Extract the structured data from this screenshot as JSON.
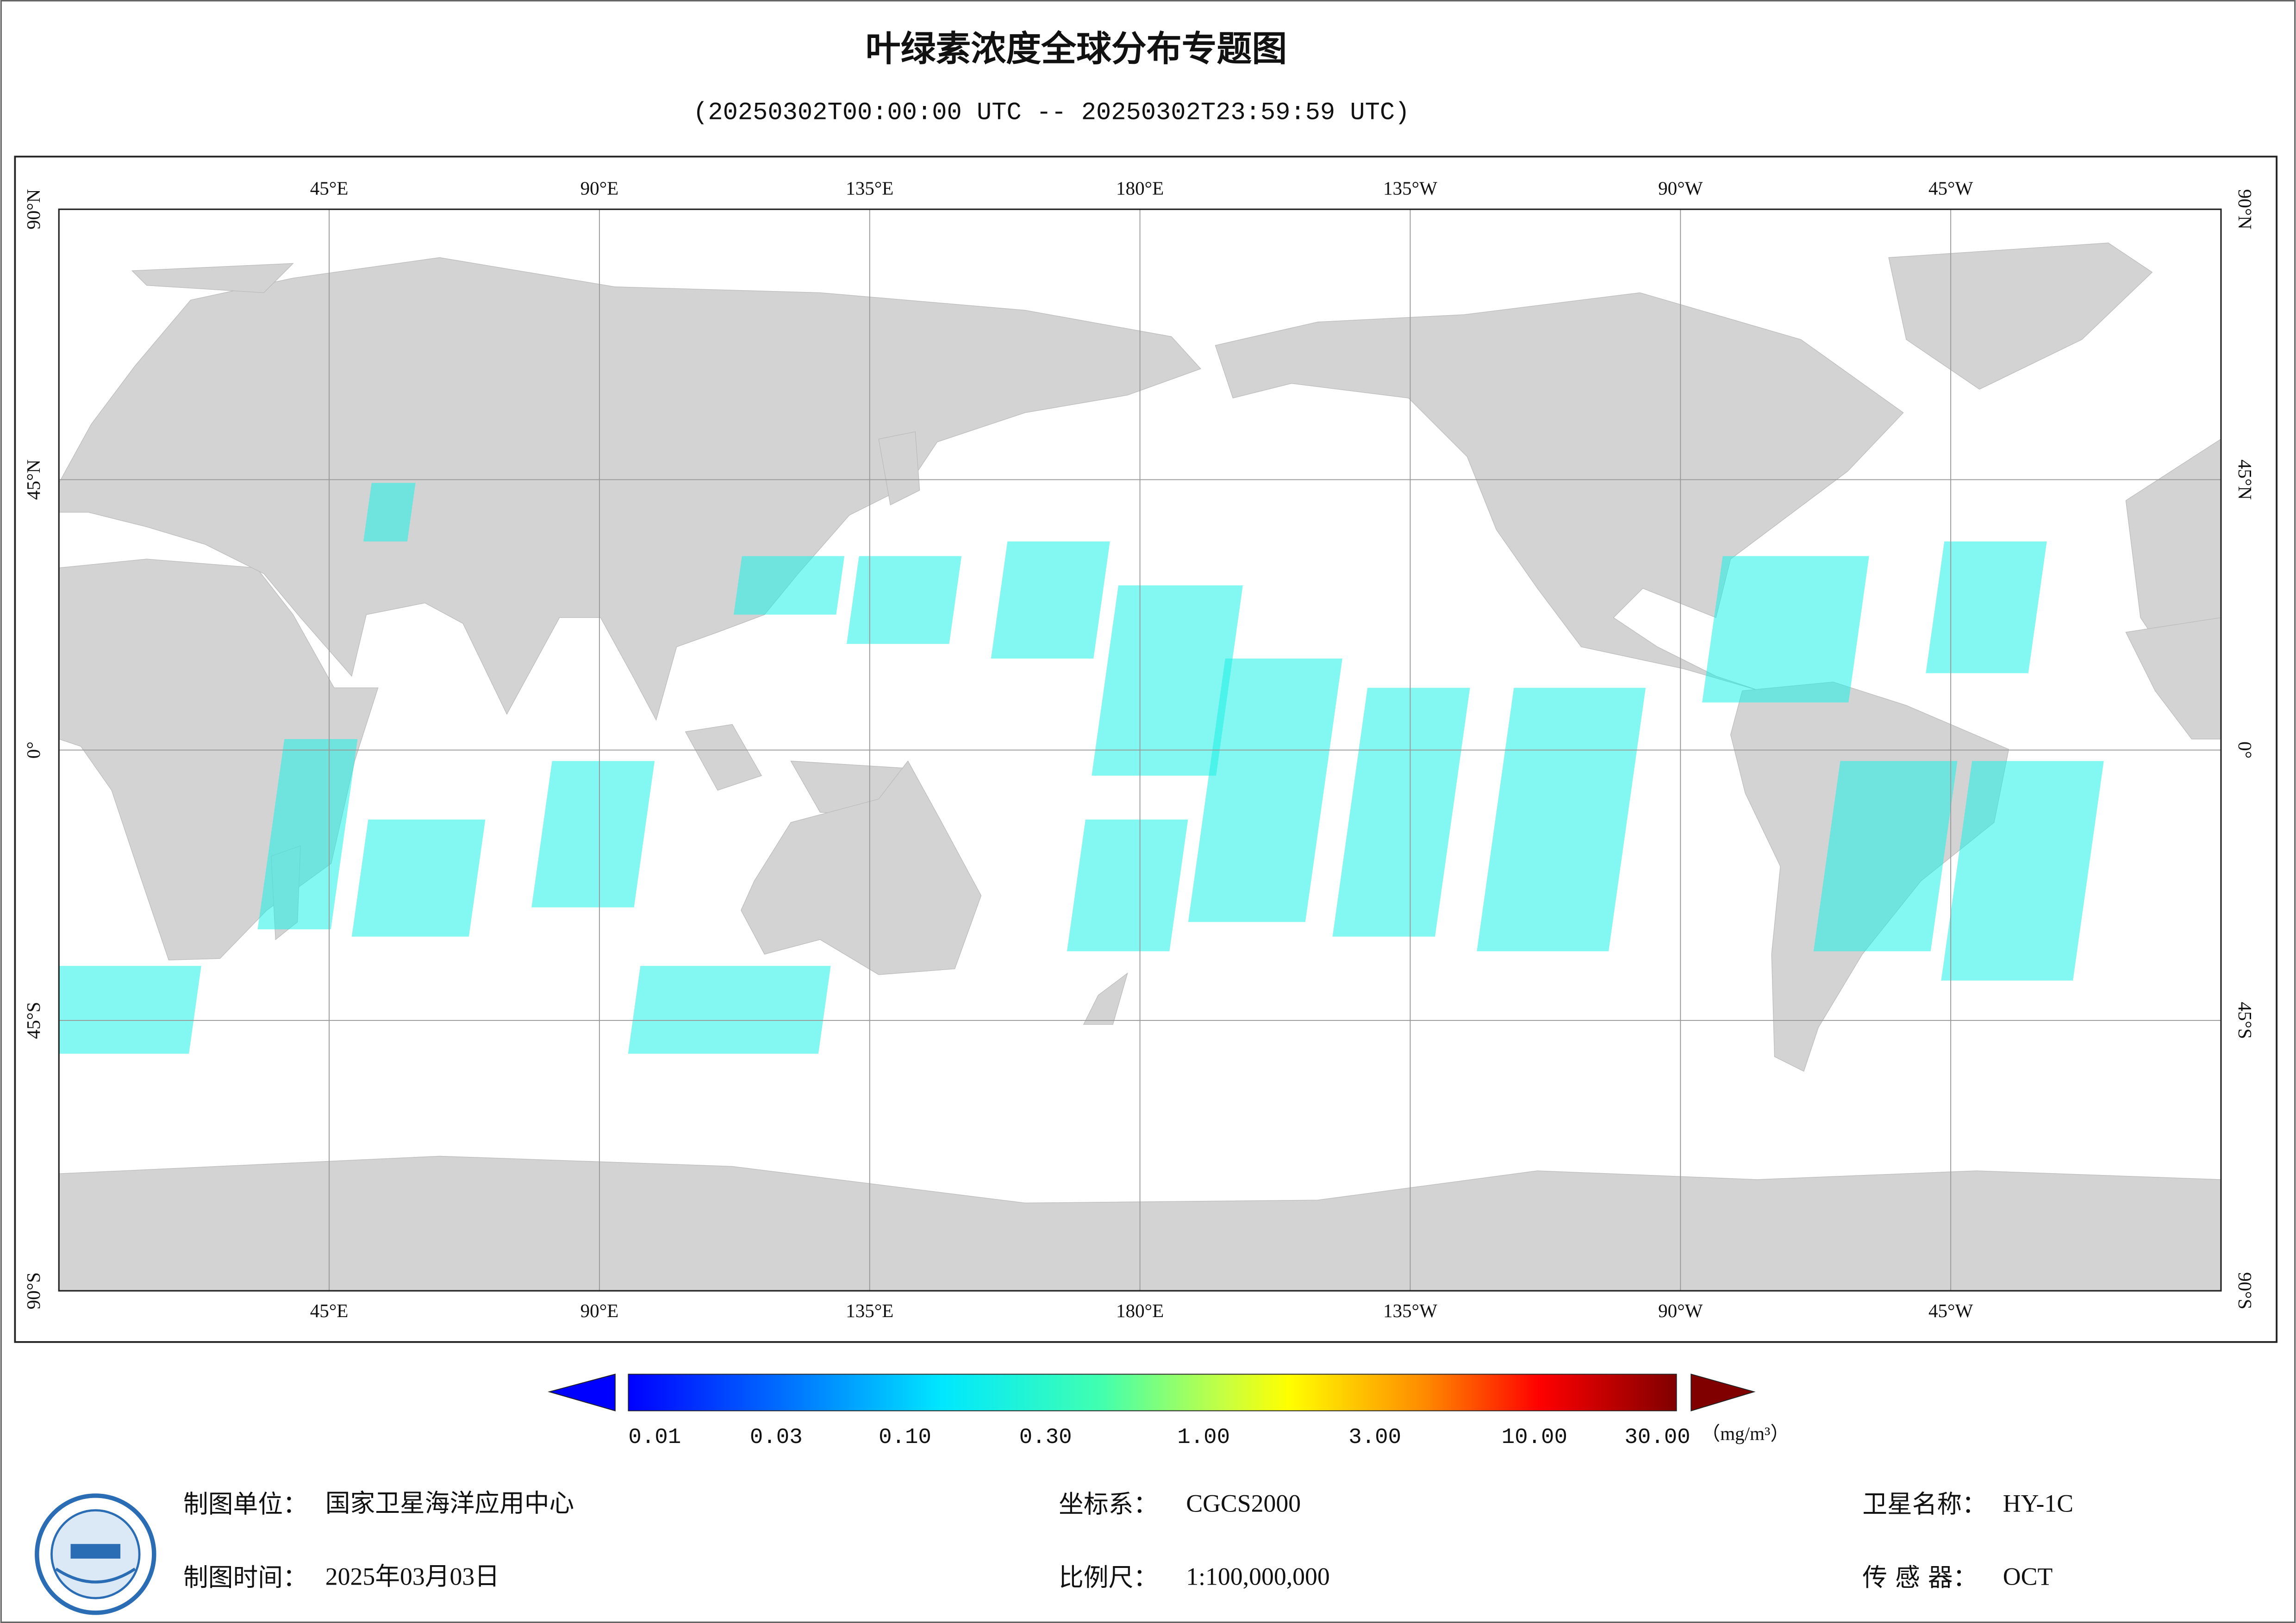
{
  "header": {
    "title": "叶绿素浓度全球分布专题图",
    "subtitle": "(20250302T00:00:00 UTC -- 20250302T23:59:59 UTC)"
  },
  "map": {
    "top_labels": [
      "45°E",
      "90°E",
      "135°E",
      "180°E",
      "135°W",
      "90°W",
      "45°W"
    ],
    "bottom_labels": [
      "45°E",
      "90°E",
      "135°E",
      "180°E",
      "135°W",
      "90°W",
      "45°W"
    ],
    "left_labels": [
      "90°N",
      "45°N",
      "0°",
      "45°S",
      "90°S"
    ],
    "right_labels": [
      "90°N",
      "45°N",
      "0°",
      "45°S",
      "90°S"
    ]
  },
  "legend": {
    "ticks": [
      "0.01",
      "0.03",
      "0.10",
      "0.30",
      "1.00",
      "3.00",
      "10.00",
      "30.00"
    ],
    "unit": "（mg/m³）"
  },
  "footer": {
    "items": [
      {
        "label": "制图单位：",
        "value": "国家卫星海洋应用中心"
      },
      {
        "label": "制图时间：",
        "value": "2025年03月03日"
      },
      {
        "label": "坐标系：",
        "value": "CGCS2000"
      },
      {
        "label": "比例尺：",
        "value": "1:100,000,000"
      },
      {
        "label": "卫星名称：",
        "value": "HY-1C"
      },
      {
        "label": "传 感 器：",
        "value": "OCT"
      }
    ]
  }
}
